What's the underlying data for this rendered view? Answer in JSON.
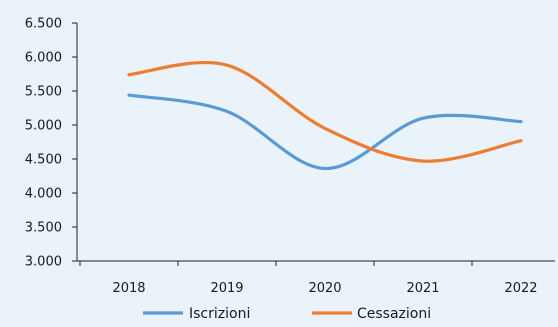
{
  "chart_data": {
    "type": "line",
    "categories": [
      "2018",
      "2019",
      "2020",
      "2021",
      "2022"
    ],
    "series": [
      {
        "name": "Iscrizioni",
        "color": "#5b9bd5",
        "values": [
          5440,
          5200,
          4360,
          5100,
          5050
        ]
      },
      {
        "name": "Cessazioni",
        "color": "#ed7d31",
        "values": [
          5740,
          5880,
          4950,
          4470,
          4770
        ]
      }
    ],
    "y_ticks": [
      "3.000",
      "3.500",
      "4.000",
      "4.500",
      "5.000",
      "5.500",
      "6.000",
      "6.500"
    ],
    "ylim": [
      3000,
      6500
    ],
    "grid": false,
    "legend_position": "bottom",
    "smooth": true
  }
}
